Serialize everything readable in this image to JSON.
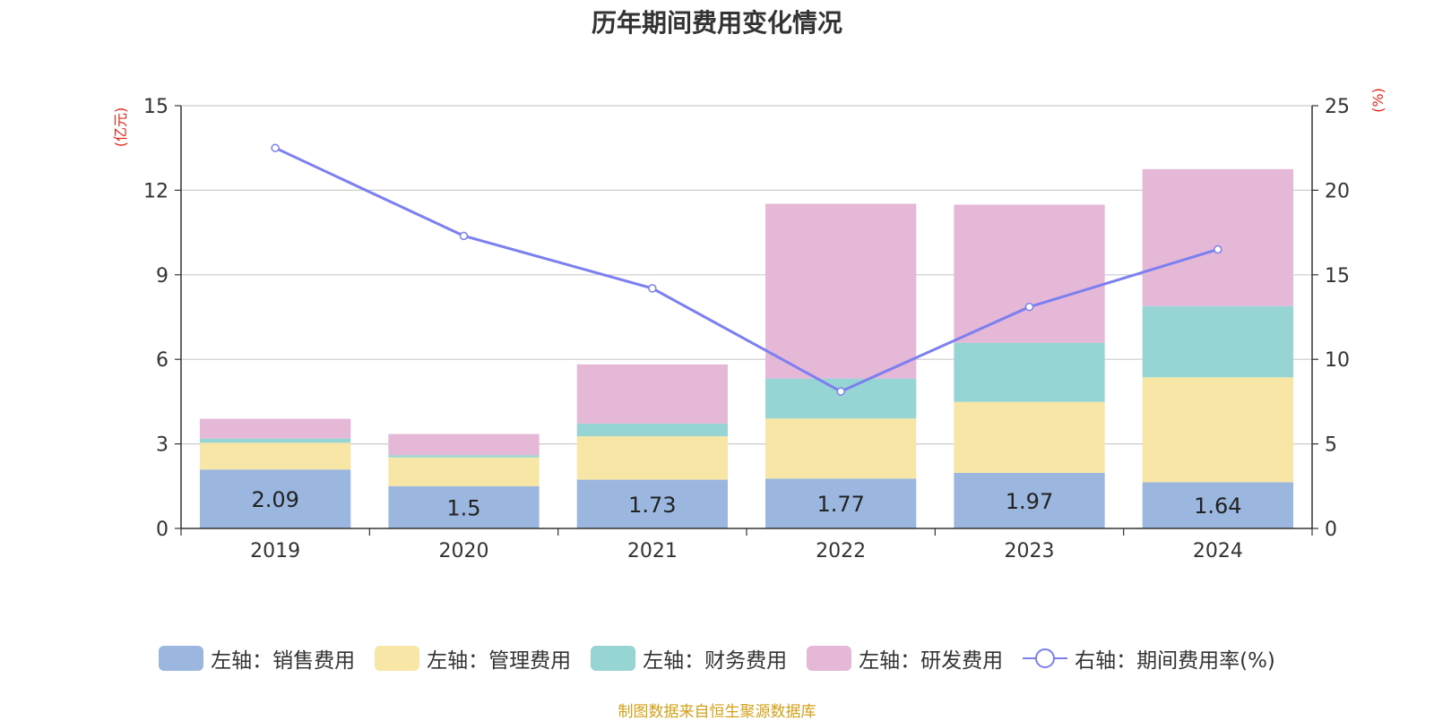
{
  "title": "历年期间费用变化情况",
  "footer": "制图数据来自恒生聚源数据库",
  "colors": {
    "sales": "#9bb7e0",
    "admin": "#f7e6a6",
    "finance": "#97d4d4",
    "rd": "#e6b8d8",
    "rate_line": "#7b7ff0"
  },
  "legend": [
    {
      "label": "左轴：销售费用",
      "color": "#9bb7e0",
      "type": "box"
    },
    {
      "label": "左轴：管理费用",
      "color": "#f7e6a6",
      "type": "box"
    },
    {
      "label": "左轴：财务费用",
      "color": "#97d4d4",
      "type": "box"
    },
    {
      "label": "左轴：研发费用",
      "color": "#e6b8d8",
      "type": "box"
    },
    {
      "label": "右轴：期间费用率(%)",
      "color": "#7b7ff0",
      "type": "line"
    }
  ],
  "chart_data": {
    "type": "bar",
    "stacked": true,
    "categories": [
      "2019",
      "2020",
      "2021",
      "2022",
      "2023",
      "2024"
    ],
    "y_left": {
      "label": "(亿元)",
      "ylim": [
        0,
        15
      ],
      "ticks": [
        0,
        3,
        6,
        9,
        12,
        15
      ]
    },
    "y_right": {
      "label": "(%)",
      "ylim": [
        0,
        25
      ],
      "ticks": [
        0,
        5,
        10,
        15,
        20,
        25
      ]
    },
    "series": [
      {
        "name": "左轴：销售费用",
        "axis": "left",
        "type": "bar",
        "values": [
          2.09,
          1.5,
          1.73,
          1.77,
          1.97,
          1.64
        ],
        "data_labels": [
          "2.09",
          "1.5",
          "1.73",
          "1.77",
          "1.97",
          "1.64"
        ]
      },
      {
        "name": "左轴：管理费用",
        "axis": "left",
        "type": "bar",
        "values": [
          0.95,
          1.02,
          1.54,
          2.13,
          2.52,
          3.72
        ]
      },
      {
        "name": "左轴：财务费用",
        "axis": "left",
        "type": "bar",
        "values": [
          0.15,
          0.08,
          0.45,
          1.42,
          2.1,
          2.53
        ]
      },
      {
        "name": "左轴：研发费用",
        "axis": "left",
        "type": "bar",
        "values": [
          0.7,
          0.75,
          2.1,
          6.2,
          4.9,
          4.86
        ]
      },
      {
        "name": "右轴：期间费用率(%)",
        "axis": "right",
        "type": "line",
        "values": [
          22.5,
          17.3,
          14.2,
          8.1,
          13.1,
          16.5
        ]
      }
    ],
    "grid": true,
    "legend_position": "bottom"
  }
}
